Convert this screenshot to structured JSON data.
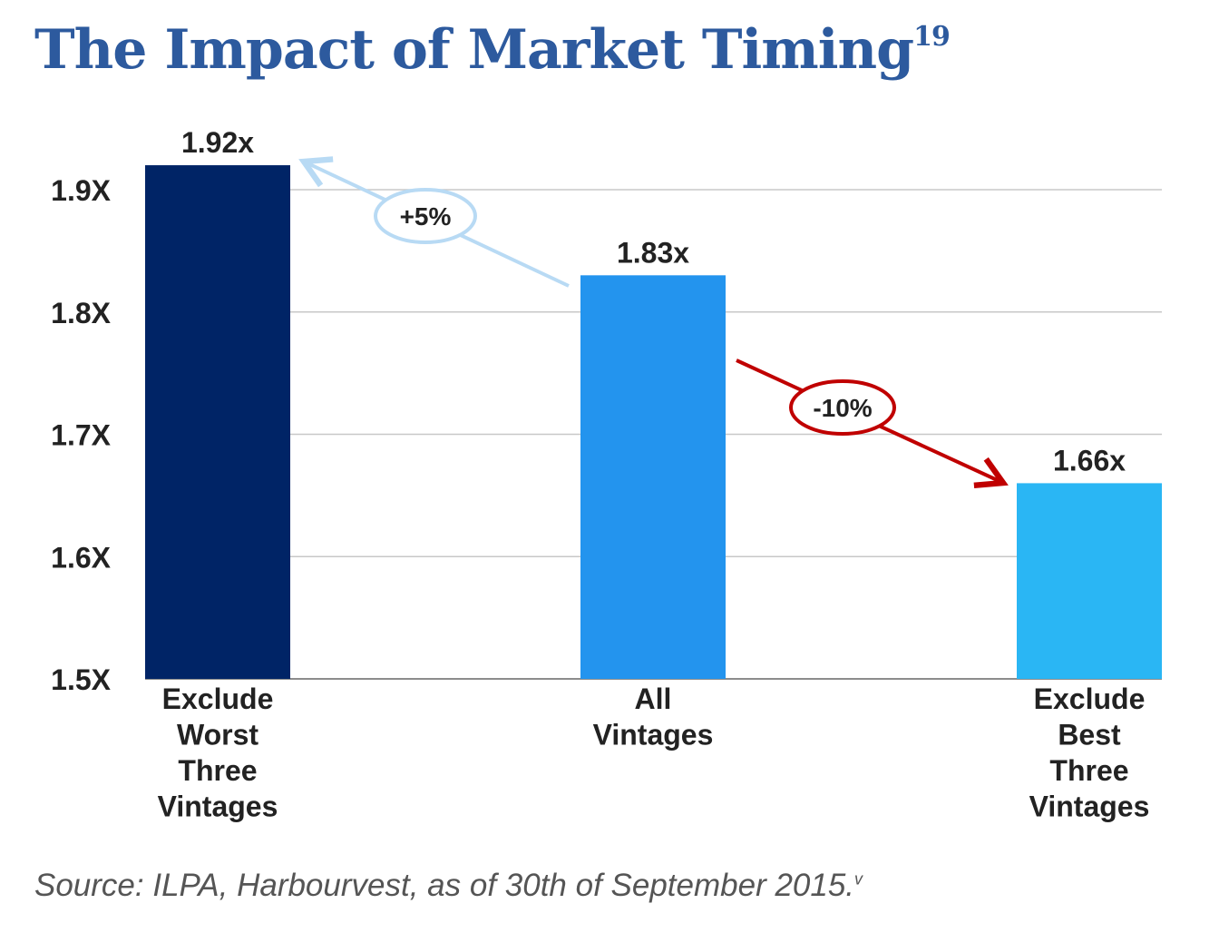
{
  "title": "The Impact of Market Timing",
  "title_footnote": "19",
  "source": "Source: ILPA, Harbourvest, as of 30th of September 2015.",
  "source_footnote": "v",
  "chart_data": {
    "type": "bar",
    "categories": [
      [
        "Exclude",
        "Worst",
        "Three",
        "Vintages"
      ],
      [
        "All",
        "Vintages"
      ],
      [
        "Exclude",
        "Best",
        "Three",
        "Vintages"
      ]
    ],
    "values": [
      1.92,
      1.83,
      1.66
    ],
    "data_labels": [
      "1.92x",
      "1.83x",
      "1.66x"
    ],
    "bar_colors": [
      "#002466",
      "#2394ee",
      "#2ab6f4"
    ],
    "ylim": [
      1.5,
      1.9
    ],
    "yticks": [
      1.5,
      1.6,
      1.7,
      1.8,
      1.9
    ],
    "ytick_labels": [
      "1.5X",
      "1.6X",
      "1.7X",
      "1.8X",
      "1.9X"
    ],
    "grid": true,
    "annotations": [
      {
        "text": "+5%",
        "color": "#b8daf4",
        "from_category": 1,
        "to_category": 0
      },
      {
        "text": "-10%",
        "color": "#c00000",
        "from_category": 1,
        "to_category": 2
      }
    ]
  }
}
